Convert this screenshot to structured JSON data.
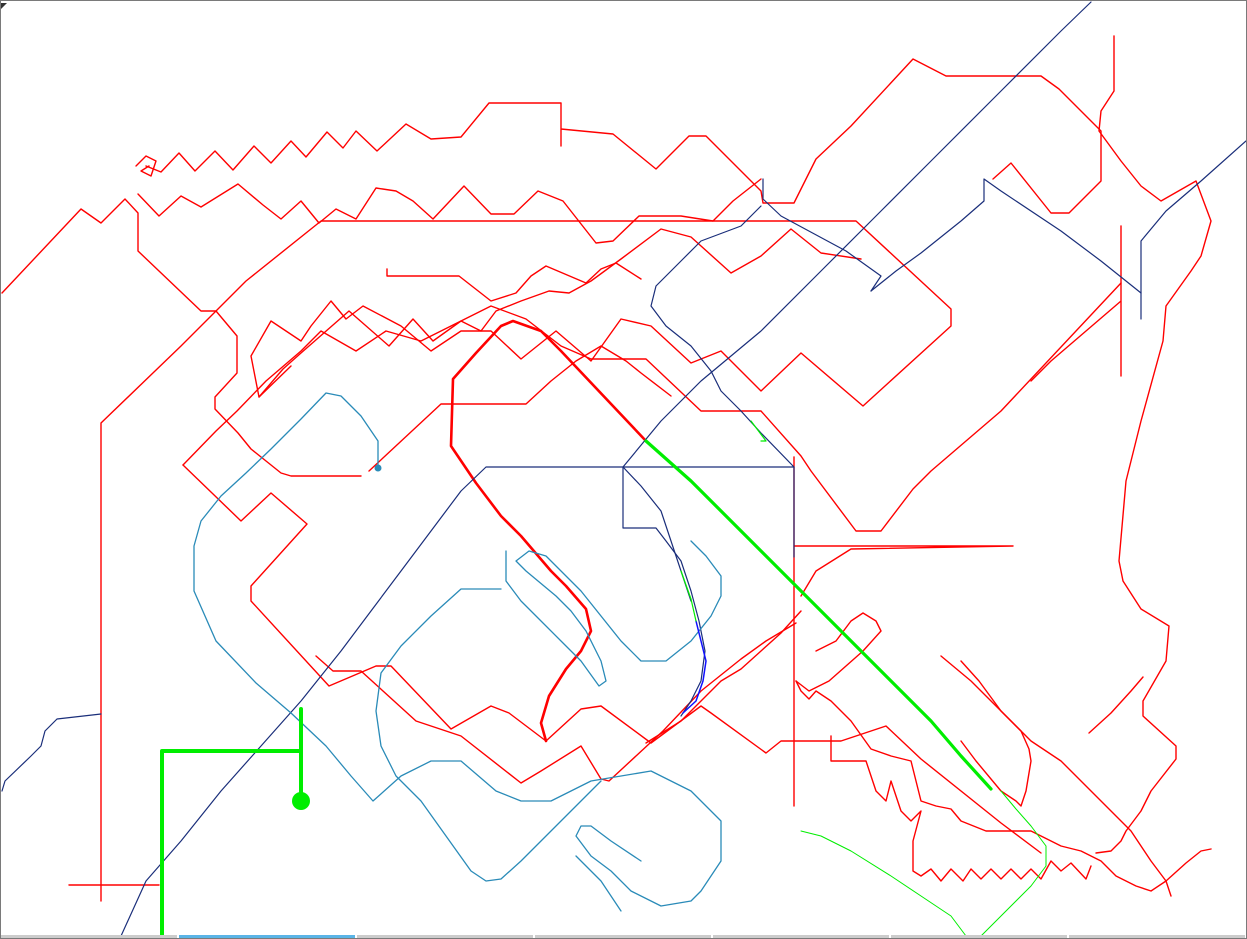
{
  "canvas": {
    "background": "#ffffff",
    "border_color": "#7a7a7a"
  },
  "line_colors": {
    "red": "#ff0000",
    "navy": "#1a2e7a",
    "teal": "#2a8bb8",
    "green": "#00ee00",
    "blue": "#1010ff"
  },
  "bottom_strip": {
    "segments": [
      {
        "name": "segment-1",
        "color": "#cccccc"
      },
      {
        "name": "segment-2",
        "color": "#5ab4e6"
      },
      {
        "name": "segment-3",
        "color": "#cccccc"
      },
      {
        "name": "segment-4",
        "color": "#cccccc"
      },
      {
        "name": "segment-5",
        "color": "#cccccc"
      },
      {
        "name": "segment-6",
        "color": "#cccccc"
      },
      {
        "name": "segment-7",
        "color": "#cccccc"
      }
    ]
  }
}
